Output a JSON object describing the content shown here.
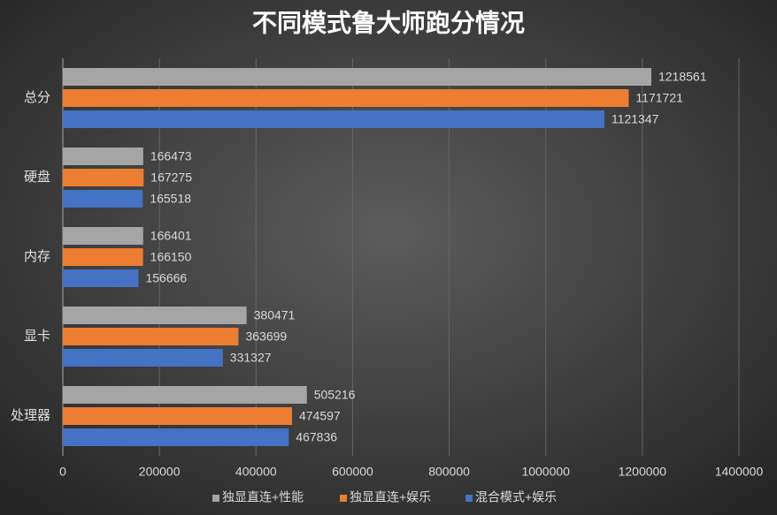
{
  "chart_data": {
    "type": "hbar",
    "title": "不同模式鲁大师跑分情况",
    "categories": [
      "总分",
      "硬盘",
      "内存",
      "显卡",
      "处理器"
    ],
    "series": [
      {
        "name": "独显直连+性能",
        "color": "#a5a5a5",
        "values": [
          1218561,
          166473,
          166401,
          380471,
          505216
        ]
      },
      {
        "name": "独显直连+娱乐",
        "color": "#ed7d31",
        "values": [
          1171721,
          167275,
          166150,
          363699,
          474597
        ]
      },
      {
        "name": "混合模式+娱乐",
        "color": "#4472c4",
        "values": [
          1121347,
          165518,
          156666,
          331327,
          467836
        ]
      }
    ],
    "xlim": [
      0,
      1400000
    ],
    "xticks": [
      0,
      200000,
      400000,
      600000,
      800000,
      1000000,
      1200000,
      1400000
    ],
    "grid": true,
    "legend": "bottom"
  }
}
